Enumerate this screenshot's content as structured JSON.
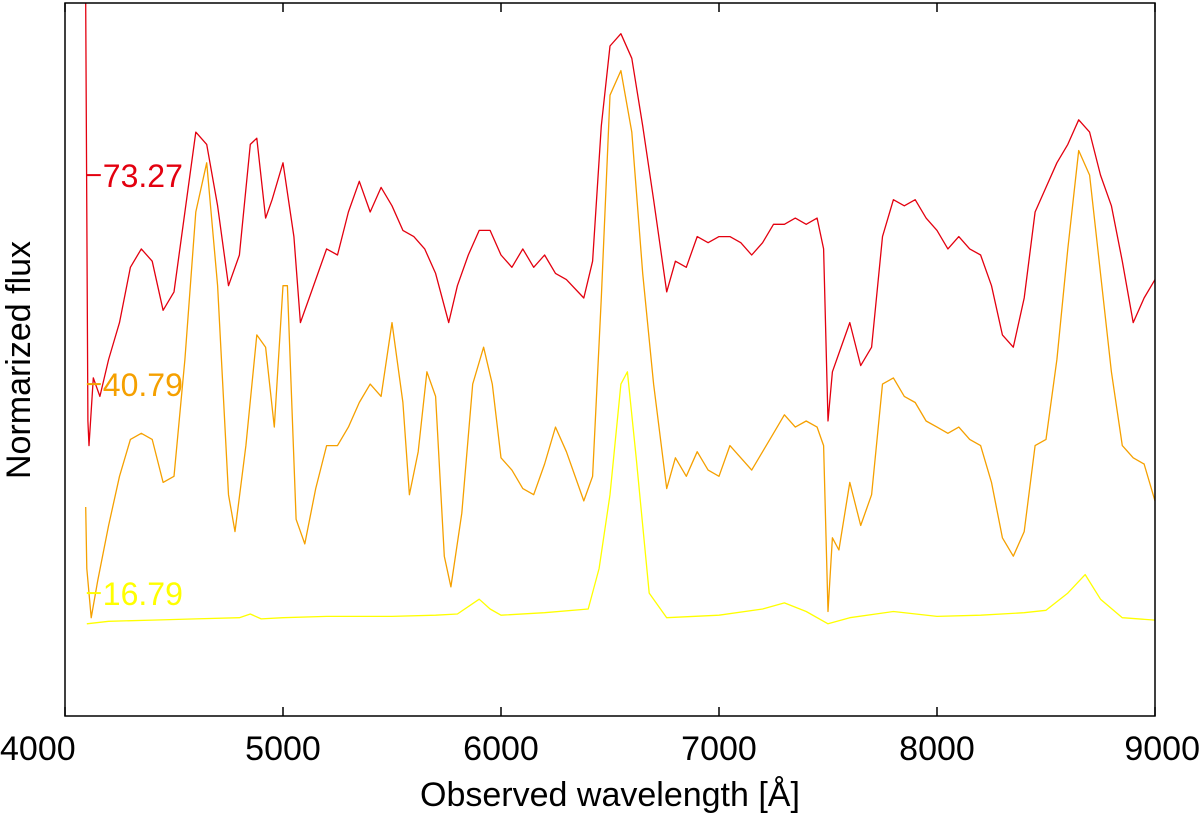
{
  "chart_data": {
    "type": "line",
    "title": "",
    "xlabel": "Observed wavelength [Å]",
    "ylabel": "Normarized flux",
    "xlim": [
      4000,
      9000
    ],
    "ylim": [
      -1.2,
      4.6
    ],
    "xticks": [
      4000,
      5000,
      6000,
      7000,
      8000,
      9000
    ],
    "yticks_shown": false,
    "grid": false,
    "legend": "none",
    "series_labels": [
      {
        "text": "73.27",
        "color": "#e3000f",
        "x": 4100,
        "y": 3.2
      },
      {
        "text": "40.79",
        "color": "#f5a000",
        "x": 4100,
        "y": 1.5
      },
      {
        "text": "16.79",
        "color": "#ffff00",
        "x": 4100,
        "y": -0.2
      }
    ],
    "series": [
      {
        "color": "#e3000f",
        "points": [
          [
            4095,
            4.6
          ],
          [
            4100,
            2.9
          ],
          [
            4105,
            1.2
          ],
          [
            4110,
            1.0
          ],
          [
            4130,
            1.55
          ],
          [
            4160,
            1.4
          ],
          [
            4200,
            1.7
          ],
          [
            4250,
            2.0
          ],
          [
            4300,
            2.45
          ],
          [
            4350,
            2.6
          ],
          [
            4400,
            2.5
          ],
          [
            4450,
            2.1
          ],
          [
            4500,
            2.25
          ],
          [
            4550,
            2.9
          ],
          [
            4600,
            3.55
          ],
          [
            4650,
            3.45
          ],
          [
            4700,
            2.95
          ],
          [
            4750,
            2.3
          ],
          [
            4800,
            2.55
          ],
          [
            4850,
            3.45
          ],
          [
            4880,
            3.5
          ],
          [
            4920,
            2.85
          ],
          [
            4950,
            3.0
          ],
          [
            5000,
            3.3
          ],
          [
            5050,
            2.7
          ],
          [
            5080,
            2.0
          ],
          [
            5120,
            2.2
          ],
          [
            5200,
            2.6
          ],
          [
            5250,
            2.55
          ],
          [
            5300,
            2.9
          ],
          [
            5350,
            3.15
          ],
          [
            5400,
            2.9
          ],
          [
            5450,
            3.1
          ],
          [
            5500,
            2.95
          ],
          [
            5550,
            2.75
          ],
          [
            5600,
            2.7
          ],
          [
            5650,
            2.6
          ],
          [
            5700,
            2.4
          ],
          [
            5760,
            2.0
          ],
          [
            5800,
            2.3
          ],
          [
            5850,
            2.55
          ],
          [
            5900,
            2.75
          ],
          [
            5950,
            2.75
          ],
          [
            6000,
            2.55
          ],
          [
            6050,
            2.45
          ],
          [
            6100,
            2.6
          ],
          [
            6150,
            2.45
          ],
          [
            6200,
            2.55
          ],
          [
            6250,
            2.4
          ],
          [
            6300,
            2.35
          ],
          [
            6380,
            2.2
          ],
          [
            6420,
            2.5
          ],
          [
            6460,
            3.6
          ],
          [
            6500,
            4.25
          ],
          [
            6550,
            4.35
          ],
          [
            6600,
            4.15
          ],
          [
            6650,
            3.6
          ],
          [
            6700,
            3.0
          ],
          [
            6760,
            2.25
          ],
          [
            6800,
            2.5
          ],
          [
            6850,
            2.45
          ],
          [
            6900,
            2.7
          ],
          [
            6950,
            2.65
          ],
          [
            7000,
            2.7
          ],
          [
            7050,
            2.7
          ],
          [
            7100,
            2.65
          ],
          [
            7150,
            2.55
          ],
          [
            7200,
            2.65
          ],
          [
            7250,
            2.8
          ],
          [
            7300,
            2.8
          ],
          [
            7350,
            2.85
          ],
          [
            7400,
            2.8
          ],
          [
            7450,
            2.85
          ],
          [
            7480,
            2.6
          ],
          [
            7500,
            1.2
          ],
          [
            7520,
            1.6
          ],
          [
            7550,
            1.75
          ],
          [
            7600,
            2.0
          ],
          [
            7650,
            1.65
          ],
          [
            7700,
            1.8
          ],
          [
            7750,
            2.7
          ],
          [
            7800,
            3.0
          ],
          [
            7850,
            2.95
          ],
          [
            7900,
            3.0
          ],
          [
            7950,
            2.85
          ],
          [
            8000,
            2.75
          ],
          [
            8050,
            2.6
          ],
          [
            8100,
            2.7
          ],
          [
            8150,
            2.6
          ],
          [
            8200,
            2.55
          ],
          [
            8250,
            2.3
          ],
          [
            8300,
            1.9
          ],
          [
            8350,
            1.8
          ],
          [
            8400,
            2.2
          ],
          [
            8450,
            2.9
          ],
          [
            8500,
            3.1
          ],
          [
            8550,
            3.3
          ],
          [
            8600,
            3.45
          ],
          [
            8650,
            3.65
          ],
          [
            8700,
            3.55
          ],
          [
            8750,
            3.2
          ],
          [
            8800,
            2.95
          ],
          [
            8850,
            2.5
          ],
          [
            8900,
            2.0
          ],
          [
            8950,
            2.2
          ],
          [
            9000,
            2.35
          ]
        ]
      },
      {
        "color": "#f5a000",
        "points": [
          [
            4095,
            0.5
          ],
          [
            4100,
            0.0
          ],
          [
            4120,
            -0.4
          ],
          [
            4150,
            -0.1
          ],
          [
            4200,
            0.35
          ],
          [
            4250,
            0.75
          ],
          [
            4300,
            1.05
          ],
          [
            4350,
            1.1
          ],
          [
            4400,
            1.05
          ],
          [
            4450,
            0.7
          ],
          [
            4500,
            0.75
          ],
          [
            4550,
            1.7
          ],
          [
            4600,
            2.9
          ],
          [
            4650,
            3.3
          ],
          [
            4700,
            2.3
          ],
          [
            4750,
            0.6
          ],
          [
            4780,
            0.3
          ],
          [
            4830,
            1.0
          ],
          [
            4880,
            1.9
          ],
          [
            4920,
            1.8
          ],
          [
            4960,
            1.15
          ],
          [
            5000,
            2.3
          ],
          [
            5020,
            2.3
          ],
          [
            5060,
            0.4
          ],
          [
            5100,
            0.2
          ],
          [
            5150,
            0.65
          ],
          [
            5200,
            1.0
          ],
          [
            5250,
            1.0
          ],
          [
            5300,
            1.15
          ],
          [
            5350,
            1.35
          ],
          [
            5400,
            1.5
          ],
          [
            5450,
            1.4
          ],
          [
            5500,
            2.0
          ],
          [
            5550,
            1.35
          ],
          [
            5580,
            0.6
          ],
          [
            5620,
            0.95
          ],
          [
            5660,
            1.6
          ],
          [
            5700,
            1.4
          ],
          [
            5740,
            0.1
          ],
          [
            5770,
            -0.15
          ],
          [
            5820,
            0.45
          ],
          [
            5870,
            1.5
          ],
          [
            5920,
            1.8
          ],
          [
            5960,
            1.5
          ],
          [
            6000,
            0.9
          ],
          [
            6050,
            0.8
          ],
          [
            6100,
            0.65
          ],
          [
            6150,
            0.6
          ],
          [
            6200,
            0.85
          ],
          [
            6250,
            1.15
          ],
          [
            6300,
            0.95
          ],
          [
            6380,
            0.55
          ],
          [
            6420,
            0.75
          ],
          [
            6460,
            2.2
          ],
          [
            6500,
            3.85
          ],
          [
            6550,
            4.05
          ],
          [
            6600,
            3.55
          ],
          [
            6650,
            2.4
          ],
          [
            6700,
            1.5
          ],
          [
            6760,
            0.65
          ],
          [
            6800,
            0.9
          ],
          [
            6850,
            0.75
          ],
          [
            6900,
            0.95
          ],
          [
            6950,
            0.8
          ],
          [
            7000,
            0.75
          ],
          [
            7050,
            1.0
          ],
          [
            7100,
            0.9
          ],
          [
            7150,
            0.8
          ],
          [
            7200,
            0.95
          ],
          [
            7250,
            1.1
          ],
          [
            7300,
            1.25
          ],
          [
            7350,
            1.15
          ],
          [
            7400,
            1.2
          ],
          [
            7450,
            1.15
          ],
          [
            7480,
            1.0
          ],
          [
            7500,
            -0.35
          ],
          [
            7520,
            0.25
          ],
          [
            7550,
            0.15
          ],
          [
            7600,
            0.7
          ],
          [
            7650,
            0.35
          ],
          [
            7700,
            0.6
          ],
          [
            7750,
            1.5
          ],
          [
            7800,
            1.55
          ],
          [
            7850,
            1.4
          ],
          [
            7900,
            1.35
          ],
          [
            7950,
            1.2
          ],
          [
            8000,
            1.15
          ],
          [
            8050,
            1.1
          ],
          [
            8100,
            1.15
          ],
          [
            8150,
            1.05
          ],
          [
            8200,
            1.0
          ],
          [
            8250,
            0.7
          ],
          [
            8300,
            0.25
          ],
          [
            8350,
            0.1
          ],
          [
            8400,
            0.3
          ],
          [
            8450,
            1.0
          ],
          [
            8500,
            1.05
          ],
          [
            8550,
            1.7
          ],
          [
            8600,
            2.6
          ],
          [
            8650,
            3.4
          ],
          [
            8700,
            3.2
          ],
          [
            8750,
            2.4
          ],
          [
            8800,
            1.6
          ],
          [
            8850,
            1.0
          ],
          [
            8900,
            0.9
          ],
          [
            8950,
            0.85
          ],
          [
            9000,
            0.55
          ]
        ]
      },
      {
        "color": "#ffff00",
        "points": [
          [
            4100,
            -0.45
          ],
          [
            4200,
            -0.43
          ],
          [
            4400,
            -0.42
          ],
          [
            4600,
            -0.41
          ],
          [
            4800,
            -0.4
          ],
          [
            4850,
            -0.37
          ],
          [
            4900,
            -0.41
          ],
          [
            5000,
            -0.4
          ],
          [
            5200,
            -0.39
          ],
          [
            5500,
            -0.39
          ],
          [
            5700,
            -0.38
          ],
          [
            5800,
            -0.37
          ],
          [
            5900,
            -0.25
          ],
          [
            5950,
            -0.33
          ],
          [
            6000,
            -0.38
          ],
          [
            6200,
            -0.36
          ],
          [
            6400,
            -0.33
          ],
          [
            6450,
            0.0
          ],
          [
            6500,
            0.6
          ],
          [
            6550,
            1.5
          ],
          [
            6580,
            1.6
          ],
          [
            6620,
            0.9
          ],
          [
            6680,
            -0.2
          ],
          [
            6760,
            -0.4
          ],
          [
            7000,
            -0.38
          ],
          [
            7200,
            -0.33
          ],
          [
            7300,
            -0.28
          ],
          [
            7400,
            -0.35
          ],
          [
            7500,
            -0.45
          ],
          [
            7600,
            -0.4
          ],
          [
            7800,
            -0.35
          ],
          [
            8000,
            -0.39
          ],
          [
            8200,
            -0.38
          ],
          [
            8400,
            -0.36
          ],
          [
            8500,
            -0.34
          ],
          [
            8600,
            -0.2
          ],
          [
            8680,
            -0.05
          ],
          [
            8750,
            -0.25
          ],
          [
            8850,
            -0.4
          ],
          [
            9000,
            -0.42
          ]
        ]
      }
    ]
  }
}
